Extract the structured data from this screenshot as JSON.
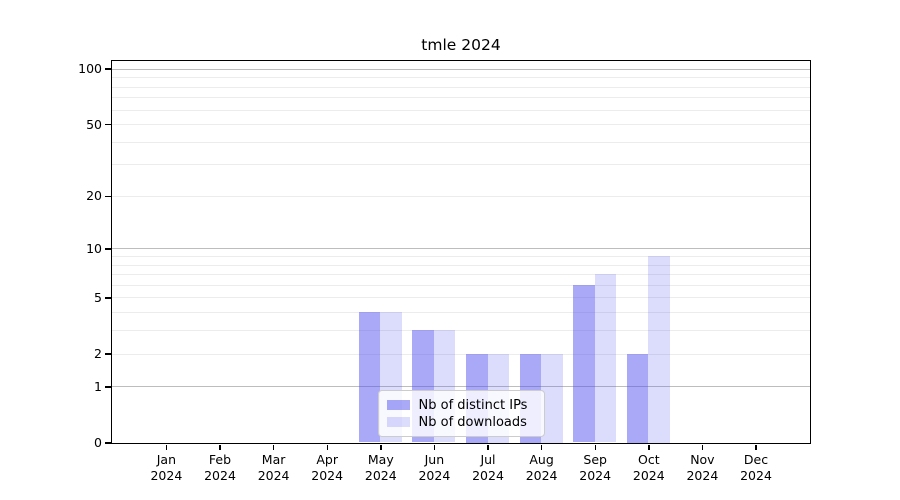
{
  "title": "tmle 2024",
  "axes": {
    "ytick_labels": [
      "100",
      "50",
      "20",
      "10",
      "5",
      "2",
      "1",
      "0"
    ],
    "ytick_values": [
      100,
      50,
      20,
      10,
      5,
      2,
      1,
      0
    ],
    "y_major_gridlines": [
      1,
      10,
      100
    ],
    "y_minor_gridlines": [
      2,
      3,
      4,
      5,
      6,
      7,
      8,
      9,
      20,
      30,
      40,
      50,
      60,
      70,
      80,
      90
    ],
    "yscale": "log1p",
    "ylim": [
      0,
      110
    ]
  },
  "chart_data": {
    "type": "bar",
    "title": "tmle 2024",
    "categories": [
      {
        "month": "Jan",
        "year": "2024"
      },
      {
        "month": "Feb",
        "year": "2024"
      },
      {
        "month": "Mar",
        "year": "2024"
      },
      {
        "month": "Apr",
        "year": "2024"
      },
      {
        "month": "May",
        "year": "2024"
      },
      {
        "month": "Jun",
        "year": "2024"
      },
      {
        "month": "Jul",
        "year": "2024"
      },
      {
        "month": "Aug",
        "year": "2024"
      },
      {
        "month": "Sep",
        "year": "2024"
      },
      {
        "month": "Oct",
        "year": "2024"
      },
      {
        "month": "Nov",
        "year": "2024"
      },
      {
        "month": "Dec",
        "year": "2024"
      }
    ],
    "series": [
      {
        "name": "Nb of distinct IPs",
        "color_solid": "#a9a9f8",
        "color": "rgba(80,80,240,0.49)",
        "values": [
          0,
          0,
          0,
          0,
          4,
          3,
          2,
          2,
          6,
          2,
          0,
          0
        ]
      },
      {
        "name": "Nb of downloads",
        "color_solid": "#dcdcfc",
        "color": "rgba(80,80,240,0.20)",
        "values": [
          0,
          0,
          0,
          0,
          4,
          3,
          2,
          2,
          7,
          9,
          0,
          0
        ]
      }
    ],
    "xlabel": "",
    "ylabel": "",
    "grid": "horizontal",
    "legend_position": "lower center"
  },
  "colors": {
    "spine": "#000000",
    "grid_major": "#bdbdbd",
    "grid_minor": "#ececec",
    "legend_border": "#cccccc",
    "legend_background": "rgba(255,255,255,0.8)"
  }
}
